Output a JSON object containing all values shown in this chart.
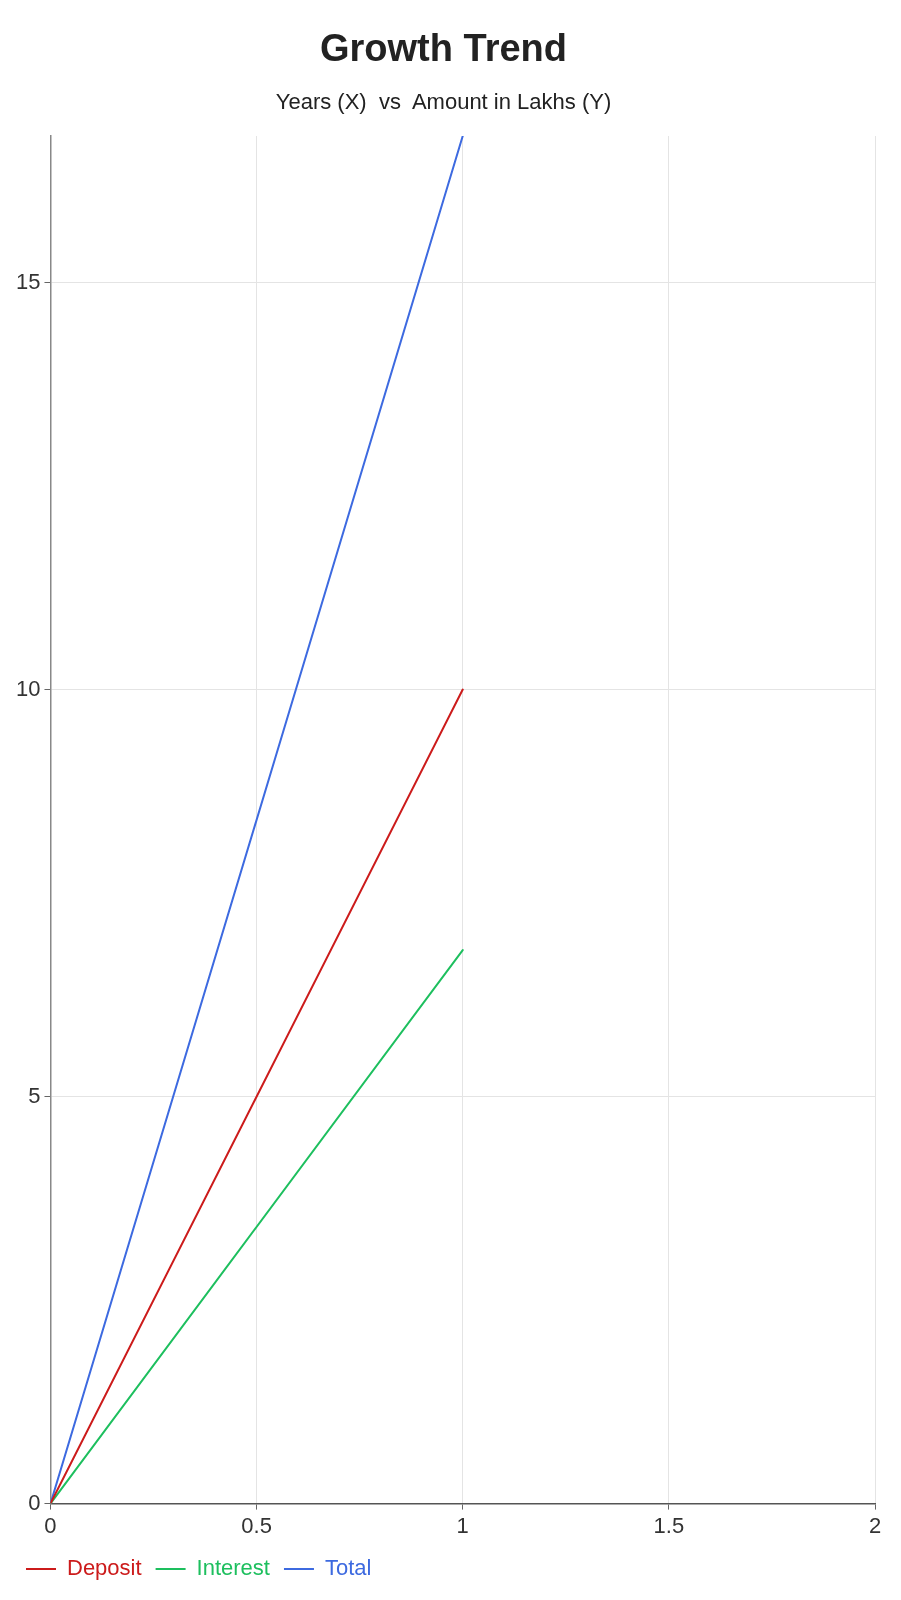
{
  "chart_data": {
    "type": "line",
    "title": "Growth Trend",
    "subtitle": "Years (X)  vs  Amount in Lakhs (Y)",
    "x": [
      0,
      1
    ],
    "series": [
      {
        "name": "Deposit",
        "color": "#cc1b1b",
        "values": [
          0,
          10
        ]
      },
      {
        "name": "Interest",
        "color": "#1dbf5e",
        "values": [
          0,
          6.8
        ]
      },
      {
        "name": "Total",
        "color": "#3d6ae0",
        "values": [
          0,
          16.8
        ]
      }
    ],
    "xlim": [
      0,
      2
    ],
    "xticks": [
      0,
      0.5,
      1,
      1.5,
      2
    ],
    "ylim": [
      0,
      16.8
    ],
    "yticks": [
      0,
      5,
      10,
      15
    ],
    "grid": true,
    "legend": "bottom left",
    "marker": "none"
  }
}
